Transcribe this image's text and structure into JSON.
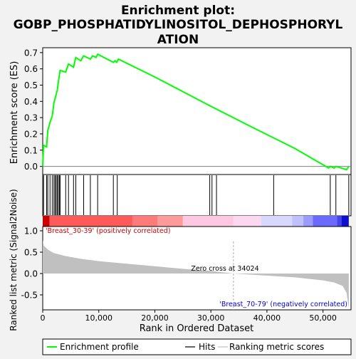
{
  "title_line1": "Enrichment plot:",
  "title_line2": "GOBP_PHOSPHATIDYLINOSITOL_DEPHOSPHORYL",
  "title_line3": "ATION",
  "top_panel": {
    "ylabel": "Enrichment score (ES)",
    "y_ticks": [
      "0.7",
      "0.6",
      "0.5",
      "0.4",
      "0.3",
      "0.2",
      "0.1",
      "0.0"
    ]
  },
  "bottom_panel": {
    "ylabel_line1": "Ranked list metric (Signal2Noise)",
    "y_ticks": [
      "1.0",
      "0.5",
      "0.0",
      "-0.5"
    ],
    "pos_label": "'Breast_30-39' (positively correlated)",
    "neg_label": "'Breast_70-79' (negatively correlated)",
    "zero_cross_label": "Zero cross at 34024",
    "xlabel": "Rank in Ordered Dataset",
    "x_ticks": [
      "0",
      "10,000",
      "20,000",
      "30,000",
      "40,000",
      "50,000"
    ]
  },
  "legend": {
    "items": [
      "Enrichment profile",
      "Hits",
      "Ranking metric scores"
    ]
  },
  "colors": {
    "es_line": "#00ff00",
    "pos_label": "#cc0000",
    "neg_label": "#0000cc",
    "metric_fill": "#c0c0c0"
  },
  "chart_data": {
    "type": "line",
    "x_range": [
      0,
      55000
    ],
    "es_ylim": [
      -0.05,
      0.73
    ],
    "metric_ylim": [
      -0.85,
      1.1
    ],
    "zero_cross": 34024,
    "total_ranks": 54600,
    "es_curve": [
      [
        0,
        0.0
      ],
      [
        150,
        0.13
      ],
      [
        700,
        0.12
      ],
      [
        900,
        0.22
      ],
      [
        1300,
        0.27
      ],
      [
        1700,
        0.31
      ],
      [
        2000,
        0.39
      ],
      [
        2300,
        0.43
      ],
      [
        2600,
        0.47
      ],
      [
        2800,
        0.52
      ],
      [
        3100,
        0.59
      ],
      [
        4100,
        0.58
      ],
      [
        4600,
        0.63
      ],
      [
        5500,
        0.61
      ],
      [
        5900,
        0.67
      ],
      [
        6800,
        0.65
      ],
      [
        7300,
        0.68
      ],
      [
        8500,
        0.66
      ],
      [
        8900,
        0.68
      ],
      [
        9500,
        0.67
      ],
      [
        9800,
        0.69
      ],
      [
        12600,
        0.64
      ],
      [
        12900,
        0.65
      ],
      [
        13200,
        0.64
      ],
      [
        13500,
        0.66
      ],
      [
        20000,
        0.55
      ],
      [
        30000,
        0.37
      ],
      [
        38000,
        0.23
      ],
      [
        45000,
        0.11
      ],
      [
        51000,
        -0.01
      ],
      [
        51300,
        0.0
      ],
      [
        52000,
        -0.01
      ],
      [
        52300,
        0.0
      ],
      [
        54200,
        -0.02
      ],
      [
        54600,
        0.0
      ]
    ],
    "hits": [
      150,
      700,
      900,
      1300,
      1700,
      2000,
      2200,
      2400,
      2600,
      2800,
      3000,
      3100,
      4100,
      4600,
      5500,
      5900,
      7300,
      8500,
      9800,
      12600,
      13300,
      29800,
      30200,
      31000,
      41200,
      51300,
      52300,
      54600
    ],
    "metric_curve": [
      [
        0,
        0.78
      ],
      [
        200,
        0.65
      ],
      [
        1000,
        0.55
      ],
      [
        2000,
        0.48
      ],
      [
        4000,
        0.41
      ],
      [
        7000,
        0.34
      ],
      [
        10000,
        0.29
      ],
      [
        15000,
        0.23
      ],
      [
        20000,
        0.17
      ],
      [
        25000,
        0.11
      ],
      [
        30000,
        0.06
      ],
      [
        34024,
        0.0
      ],
      [
        40000,
        -0.05
      ],
      [
        45000,
        -0.09
      ],
      [
        50000,
        -0.16
      ],
      [
        52000,
        -0.21
      ],
      [
        53500,
        -0.29
      ],
      [
        54200,
        -0.45
      ],
      [
        54600,
        -0.82
      ]
    ]
  }
}
